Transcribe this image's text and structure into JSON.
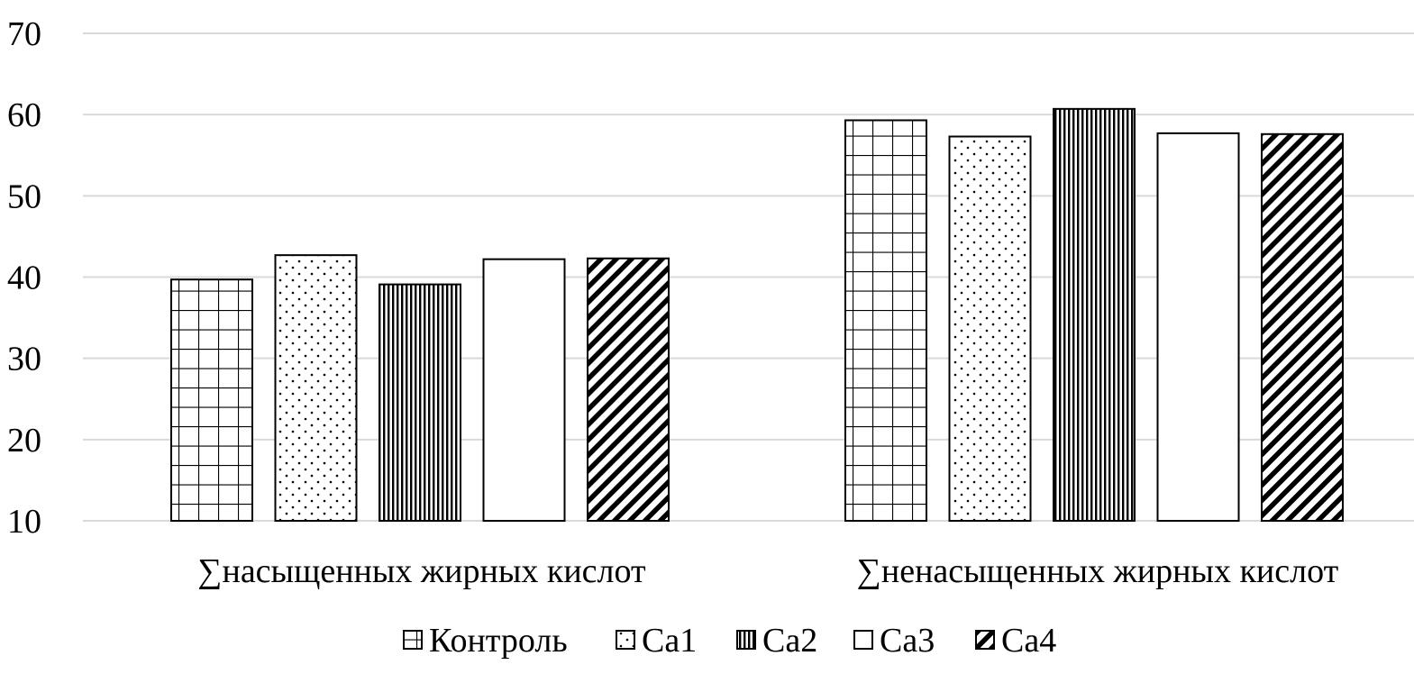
{
  "chart_data": {
    "type": "bar",
    "title": "",
    "xlabel": "",
    "ylabel": "",
    "ylim": [
      10,
      70
    ],
    "yticks": [
      10,
      20,
      30,
      40,
      50,
      60,
      70
    ],
    "grid": true,
    "legend_position": "bottom",
    "categories": [
      "∑насыщенных жирных кислот",
      "∑ненасыщенных жирных кислот"
    ],
    "series": [
      {
        "name": "Контроль",
        "pattern": "grid",
        "values": [
          39.7,
          59.3
        ]
      },
      {
        "name": "Ca1",
        "pattern": "dots",
        "values": [
          42.7,
          57.3
        ]
      },
      {
        "name": "Ca2",
        "pattern": "vertical",
        "values": [
          39.1,
          60.7
        ]
      },
      {
        "name": "Ca3",
        "pattern": "none",
        "values": [
          42.2,
          57.7
        ]
      },
      {
        "name": "Ca4",
        "pattern": "diagonal",
        "values": [
          42.3,
          57.6
        ]
      }
    ],
    "colors": {
      "stroke": "#000000",
      "fill": "#ffffff",
      "grid": "#d9d9d9"
    }
  }
}
